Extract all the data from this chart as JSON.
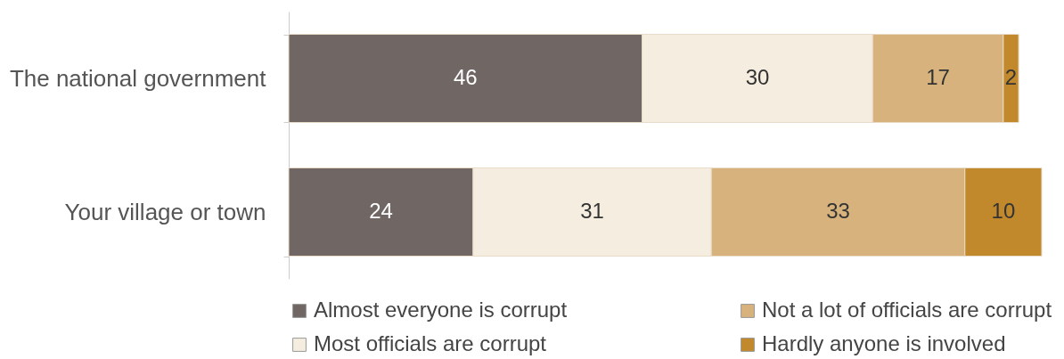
{
  "chart_data": {
    "type": "bar",
    "orientation": "horizontal",
    "stacked": true,
    "data_labels": true,
    "legend": "bottom",
    "grid": false,
    "categories": [
      "The national government",
      "Your village or town"
    ],
    "series": [
      {
        "name": "Almost everyone is corrupt",
        "color": "#706664",
        "values": [
          46,
          24
        ]
      },
      {
        "name": "Most officials are corrupt",
        "color": "#f5ede0",
        "values": [
          30,
          31
        ]
      },
      {
        "name": "Not a lot of officials are corrupt",
        "color": "#d8b27c",
        "values": [
          17,
          33
        ]
      },
      {
        "name": "Hardly anyone is involved",
        "color": "#c2892c",
        "values": [
          2,
          10
        ]
      }
    ]
  }
}
